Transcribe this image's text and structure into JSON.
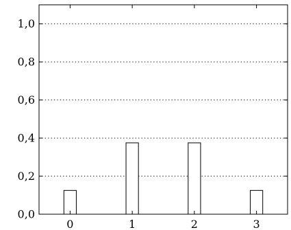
{
  "chart_data": {
    "type": "bar",
    "title": "",
    "xlabel": "",
    "ylabel": "",
    "categories": [
      "0",
      "1",
      "2",
      "3"
    ],
    "x": [
      0,
      1,
      2,
      3
    ],
    "values": [
      0.125,
      0.375,
      0.375,
      0.125
    ],
    "xlim": [
      -0.5,
      3.5
    ],
    "ylim": [
      0,
      1.1
    ],
    "y_ticks": [
      "0,0",
      "0,2",
      "0,4",
      "0,6",
      "0,8",
      "1,0"
    ],
    "x_ticks": [
      "0",
      "1",
      "2",
      "3"
    ],
    "grid": "horizontal dotted",
    "legend": "none",
    "colors": {
      "bar_fill": "#ffffff",
      "bar_stroke": "#000000",
      "axis": "#000000",
      "grid": "#000000"
    }
  }
}
